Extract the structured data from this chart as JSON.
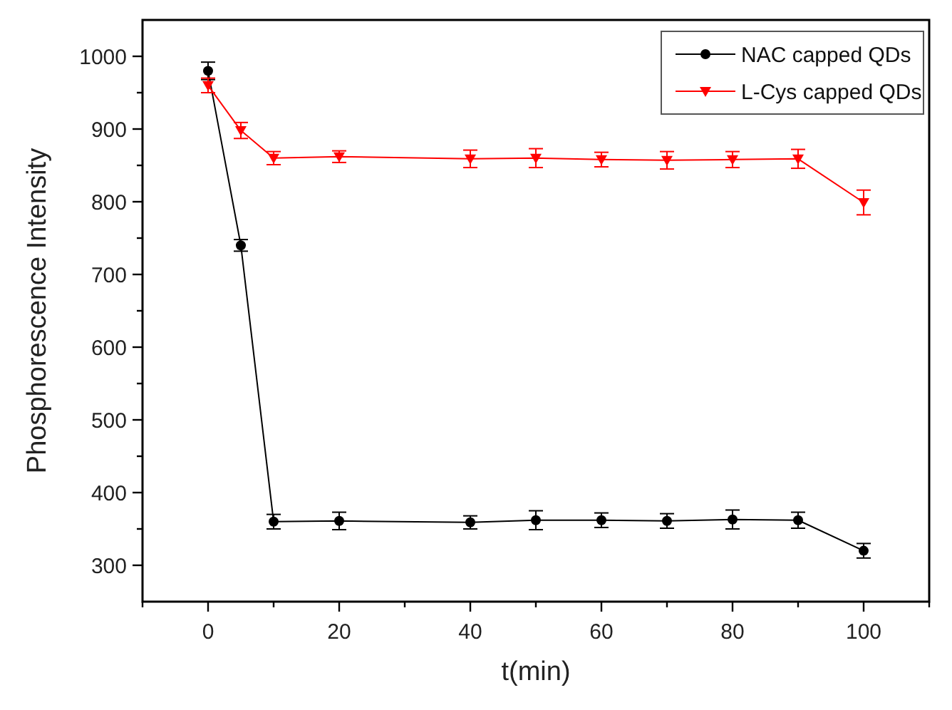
{
  "chart_data": {
    "type": "line",
    "xlabel": "t(min)",
    "ylabel": "Phosphorescence Intensity",
    "x": [
      0,
      5,
      10,
      20,
      40,
      50,
      60,
      70,
      80,
      90,
      100
    ],
    "xlim": [
      -10,
      110
    ],
    "xticks": [
      {
        "value": -10,
        "label": null
      },
      0,
      {
        "value": 10,
        "label": null
      },
      20,
      {
        "value": 30,
        "label": null
      },
      40,
      {
        "value": 50,
        "label": null
      },
      60,
      {
        "value": 70,
        "label": null
      },
      80,
      {
        "value": 90,
        "label": null
      },
      100,
      {
        "value": 110,
        "label": null
      }
    ],
    "ylim": [
      250,
      1050
    ],
    "yticks": [
      300,
      {
        "value": 350,
        "label": null
      },
      400,
      {
        "value": 450,
        "label": null
      },
      500,
      {
        "value": 550,
        "label": null
      },
      600,
      {
        "value": 650,
        "label": null
      },
      700,
      {
        "value": 750,
        "label": null
      },
      800,
      {
        "value": 850,
        "label": null
      },
      900,
      {
        "value": 950,
        "label": null
      },
      1000
    ],
    "legend": "top right",
    "grid": false,
    "line_style": "solid",
    "series": [
      {
        "name": "NAC capped QDs",
        "color": "#000000",
        "marker": "circle",
        "values": [
          980,
          740,
          360,
          361,
          359,
          362,
          362,
          361,
          363,
          362,
          320
        ],
        "errors": [
          12,
          8,
          10,
          12,
          9,
          13,
          10,
          10,
          13,
          11,
          10
        ]
      },
      {
        "name": "L-Cys capped QDs",
        "color": "#ff0000",
        "marker": "triangle",
        "values": [
          960,
          898,
          860,
          862,
          859,
          860,
          858,
          857,
          858,
          859,
          799
        ],
        "errors": [
          10,
          11,
          9,
          8,
          12,
          13,
          10,
          12,
          11,
          13,
          17
        ]
      }
    ]
  }
}
